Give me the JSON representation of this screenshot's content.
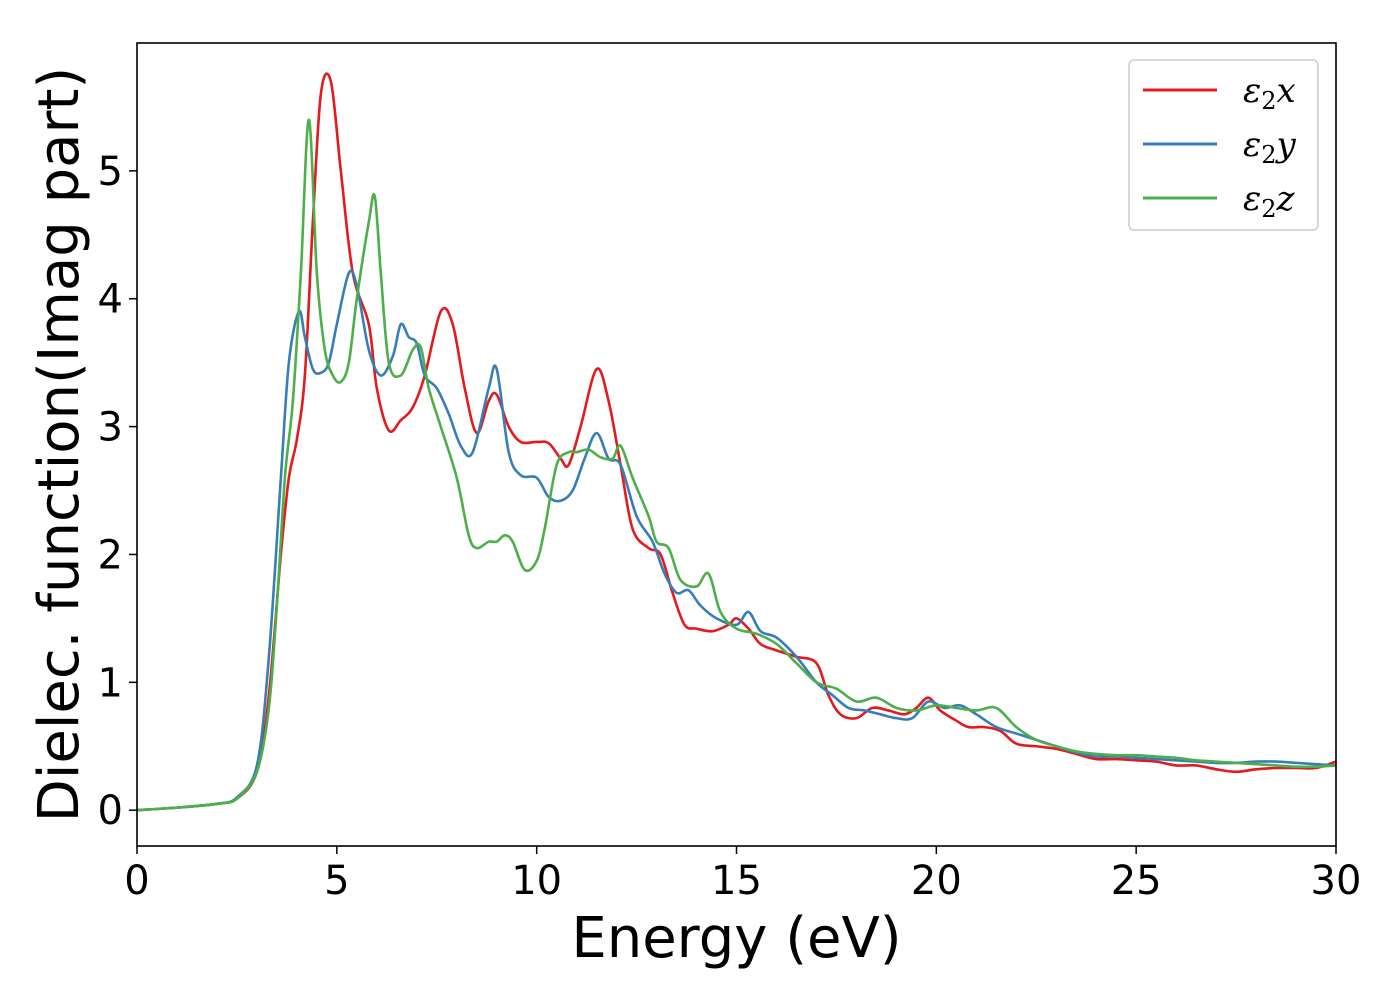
{
  "chart_data": {
    "type": "line",
    "title": "",
    "xlabel": "Energy (eV)",
    "ylabel": "Dielec. function(Imag part)",
    "xlim": [
      0,
      30
    ],
    "ylim": [
      -0.28,
      6.0
    ],
    "xticks": [
      0,
      5,
      10,
      15,
      20,
      25,
      30
    ],
    "yticks": [
      0,
      1,
      2,
      3,
      4,
      5
    ],
    "grid": false,
    "legend_position": "top-right",
    "series": [
      {
        "name": "ε2x",
        "legend_base": "ε",
        "legend_sub": "2",
        "legend_tail": "x",
        "color": "#e41a1c",
        "x": [
          0,
          1,
          2,
          2.5,
          3,
          3.3,
          3.6,
          3.8,
          4.0,
          4.2,
          4.4,
          4.6,
          4.85,
          5.1,
          5.4,
          5.8,
          6.0,
          6.3,
          6.6,
          6.9,
          7.2,
          7.6,
          7.9,
          8.2,
          8.5,
          8.8,
          9.0,
          9.3,
          9.6,
          10.0,
          10.3,
          10.6,
          10.8,
          11.1,
          11.5,
          11.8,
          12.1,
          12.4,
          12.8,
          13.1,
          13.4,
          13.7,
          14.0,
          14.4,
          14.8,
          15.0,
          15.3,
          15.6,
          16.0,
          16.5,
          17.0,
          17.3,
          17.6,
          18.0,
          18.4,
          18.8,
          19.2,
          19.5,
          19.8,
          20.1,
          20.5,
          20.8,
          21.2,
          21.6,
          22.0,
          22.5,
          23.0,
          23.5,
          24.0,
          24.5,
          25.0,
          25.5,
          26.0,
          26.5,
          27.0,
          27.5,
          28.0,
          28.5,
          29.0,
          29.5,
          30.0
        ],
        "values": [
          0,
          0.02,
          0.05,
          0.09,
          0.3,
          0.9,
          2.0,
          2.6,
          2.9,
          3.4,
          4.6,
          5.6,
          5.7,
          5.0,
          4.2,
          3.8,
          3.3,
          2.97,
          3.05,
          3.15,
          3.4,
          3.9,
          3.8,
          3.3,
          2.95,
          3.2,
          3.25,
          3.0,
          2.88,
          2.88,
          2.87,
          2.75,
          2.7,
          3.0,
          3.45,
          3.2,
          2.7,
          2.2,
          2.05,
          2.0,
          1.7,
          1.45,
          1.42,
          1.4,
          1.45,
          1.5,
          1.42,
          1.3,
          1.25,
          1.2,
          1.15,
          0.9,
          0.75,
          0.72,
          0.8,
          0.78,
          0.75,
          0.8,
          0.88,
          0.78,
          0.7,
          0.65,
          0.65,
          0.62,
          0.52,
          0.5,
          0.48,
          0.44,
          0.4,
          0.4,
          0.39,
          0.38,
          0.35,
          0.35,
          0.32,
          0.3,
          0.32,
          0.33,
          0.33,
          0.33,
          0.38
        ]
      },
      {
        "name": "ε2y",
        "legend_base": "ε",
        "legend_sub": "2",
        "legend_tail": "y",
        "color": "#377eb8",
        "x": [
          0,
          1,
          2,
          2.5,
          3,
          3.3,
          3.6,
          3.8,
          4.05,
          4.2,
          4.4,
          4.6,
          4.8,
          5.0,
          5.3,
          5.5,
          5.8,
          6.1,
          6.4,
          6.6,
          6.8,
          7.0,
          7.2,
          7.5,
          7.8,
          8.1,
          8.4,
          8.8,
          9.0,
          9.3,
          9.6,
          10.0,
          10.3,
          10.6,
          10.9,
          11.2,
          11.5,
          11.8,
          12.1,
          12.5,
          12.9,
          13.2,
          13.5,
          13.8,
          14.1,
          14.5,
          15.0,
          15.3,
          15.6,
          16.0,
          16.5,
          17.0,
          17.4,
          17.8,
          18.2,
          18.6,
          19.0,
          19.4,
          19.8,
          20.2,
          20.6,
          21.0,
          21.5,
          22.0,
          22.5,
          23.0,
          23.5,
          24.0,
          24.5,
          25.0,
          25.5,
          26.0,
          26.5,
          27.0,
          27.5,
          28.0,
          28.5,
          29.0,
          29.5,
          30.0
        ],
        "values": [
          0,
          0.02,
          0.05,
          0.1,
          0.35,
          1.2,
          2.6,
          3.5,
          3.9,
          3.7,
          3.45,
          3.42,
          3.5,
          3.8,
          4.2,
          4.1,
          3.6,
          3.4,
          3.55,
          3.8,
          3.7,
          3.65,
          3.4,
          3.3,
          3.1,
          2.85,
          2.8,
          3.3,
          3.45,
          2.8,
          2.62,
          2.6,
          2.45,
          2.42,
          2.5,
          2.75,
          2.95,
          2.75,
          2.7,
          2.3,
          2.1,
          1.85,
          1.7,
          1.72,
          1.6,
          1.5,
          1.45,
          1.55,
          1.4,
          1.35,
          1.2,
          1.0,
          0.9,
          0.8,
          0.78,
          0.75,
          0.72,
          0.72,
          0.85,
          0.8,
          0.82,
          0.75,
          0.65,
          0.6,
          0.55,
          0.5,
          0.45,
          0.42,
          0.42,
          0.41,
          0.4,
          0.39,
          0.38,
          0.37,
          0.37,
          0.38,
          0.38,
          0.37,
          0.36,
          0.35
        ]
      },
      {
        "name": "ε2z",
        "legend_base": "ε",
        "legend_sub": "2",
        "legend_tail": "z",
        "color": "#4daf4a",
        "x": [
          0,
          1,
          2,
          2.5,
          3,
          3.3,
          3.5,
          3.7,
          3.9,
          4.1,
          4.3,
          4.5,
          4.7,
          4.9,
          5.1,
          5.3,
          5.5,
          5.8,
          5.95,
          6.1,
          6.3,
          6.6,
          6.9,
          7.1,
          7.3,
          7.6,
          8.0,
          8.3,
          8.5,
          8.8,
          9.0,
          9.2,
          9.4,
          9.7,
          10.0,
          10.2,
          10.5,
          10.8,
          11.0,
          11.3,
          11.6,
          11.9,
          12.1,
          12.4,
          12.8,
          13.0,
          13.3,
          13.6,
          14.0,
          14.3,
          14.6,
          15.0,
          15.5,
          16.0,
          16.5,
          17.0,
          17.5,
          18.0,
          18.5,
          19.0,
          19.5,
          20.0,
          20.5,
          21.0,
          21.5,
          22.0,
          22.5,
          23.0,
          23.5,
          24.0,
          24.5,
          25.0,
          25.5,
          26.0,
          26.5,
          27.0,
          27.5,
          28.0,
          28.5,
          29.0,
          29.5,
          30.0
        ],
        "values": [
          0,
          0.02,
          0.05,
          0.09,
          0.3,
          0.8,
          1.6,
          2.6,
          3.2,
          4.2,
          5.4,
          4.2,
          3.6,
          3.4,
          3.35,
          3.5,
          4.0,
          4.6,
          4.8,
          4.2,
          3.5,
          3.4,
          3.6,
          3.62,
          3.3,
          3.0,
          2.6,
          2.15,
          2.05,
          2.1,
          2.1,
          2.15,
          2.1,
          1.88,
          1.95,
          2.2,
          2.7,
          2.8,
          2.8,
          2.82,
          2.76,
          2.75,
          2.85,
          2.6,
          2.3,
          2.1,
          2.05,
          1.8,
          1.75,
          1.85,
          1.55,
          1.42,
          1.38,
          1.3,
          1.15,
          1.0,
          0.95,
          0.85,
          0.88,
          0.8,
          0.78,
          0.82,
          0.8,
          0.78,
          0.8,
          0.65,
          0.55,
          0.5,
          0.46,
          0.44,
          0.43,
          0.43,
          0.42,
          0.41,
          0.39,
          0.38,
          0.37,
          0.36,
          0.35,
          0.34,
          0.34,
          0.35
        ]
      }
    ]
  }
}
